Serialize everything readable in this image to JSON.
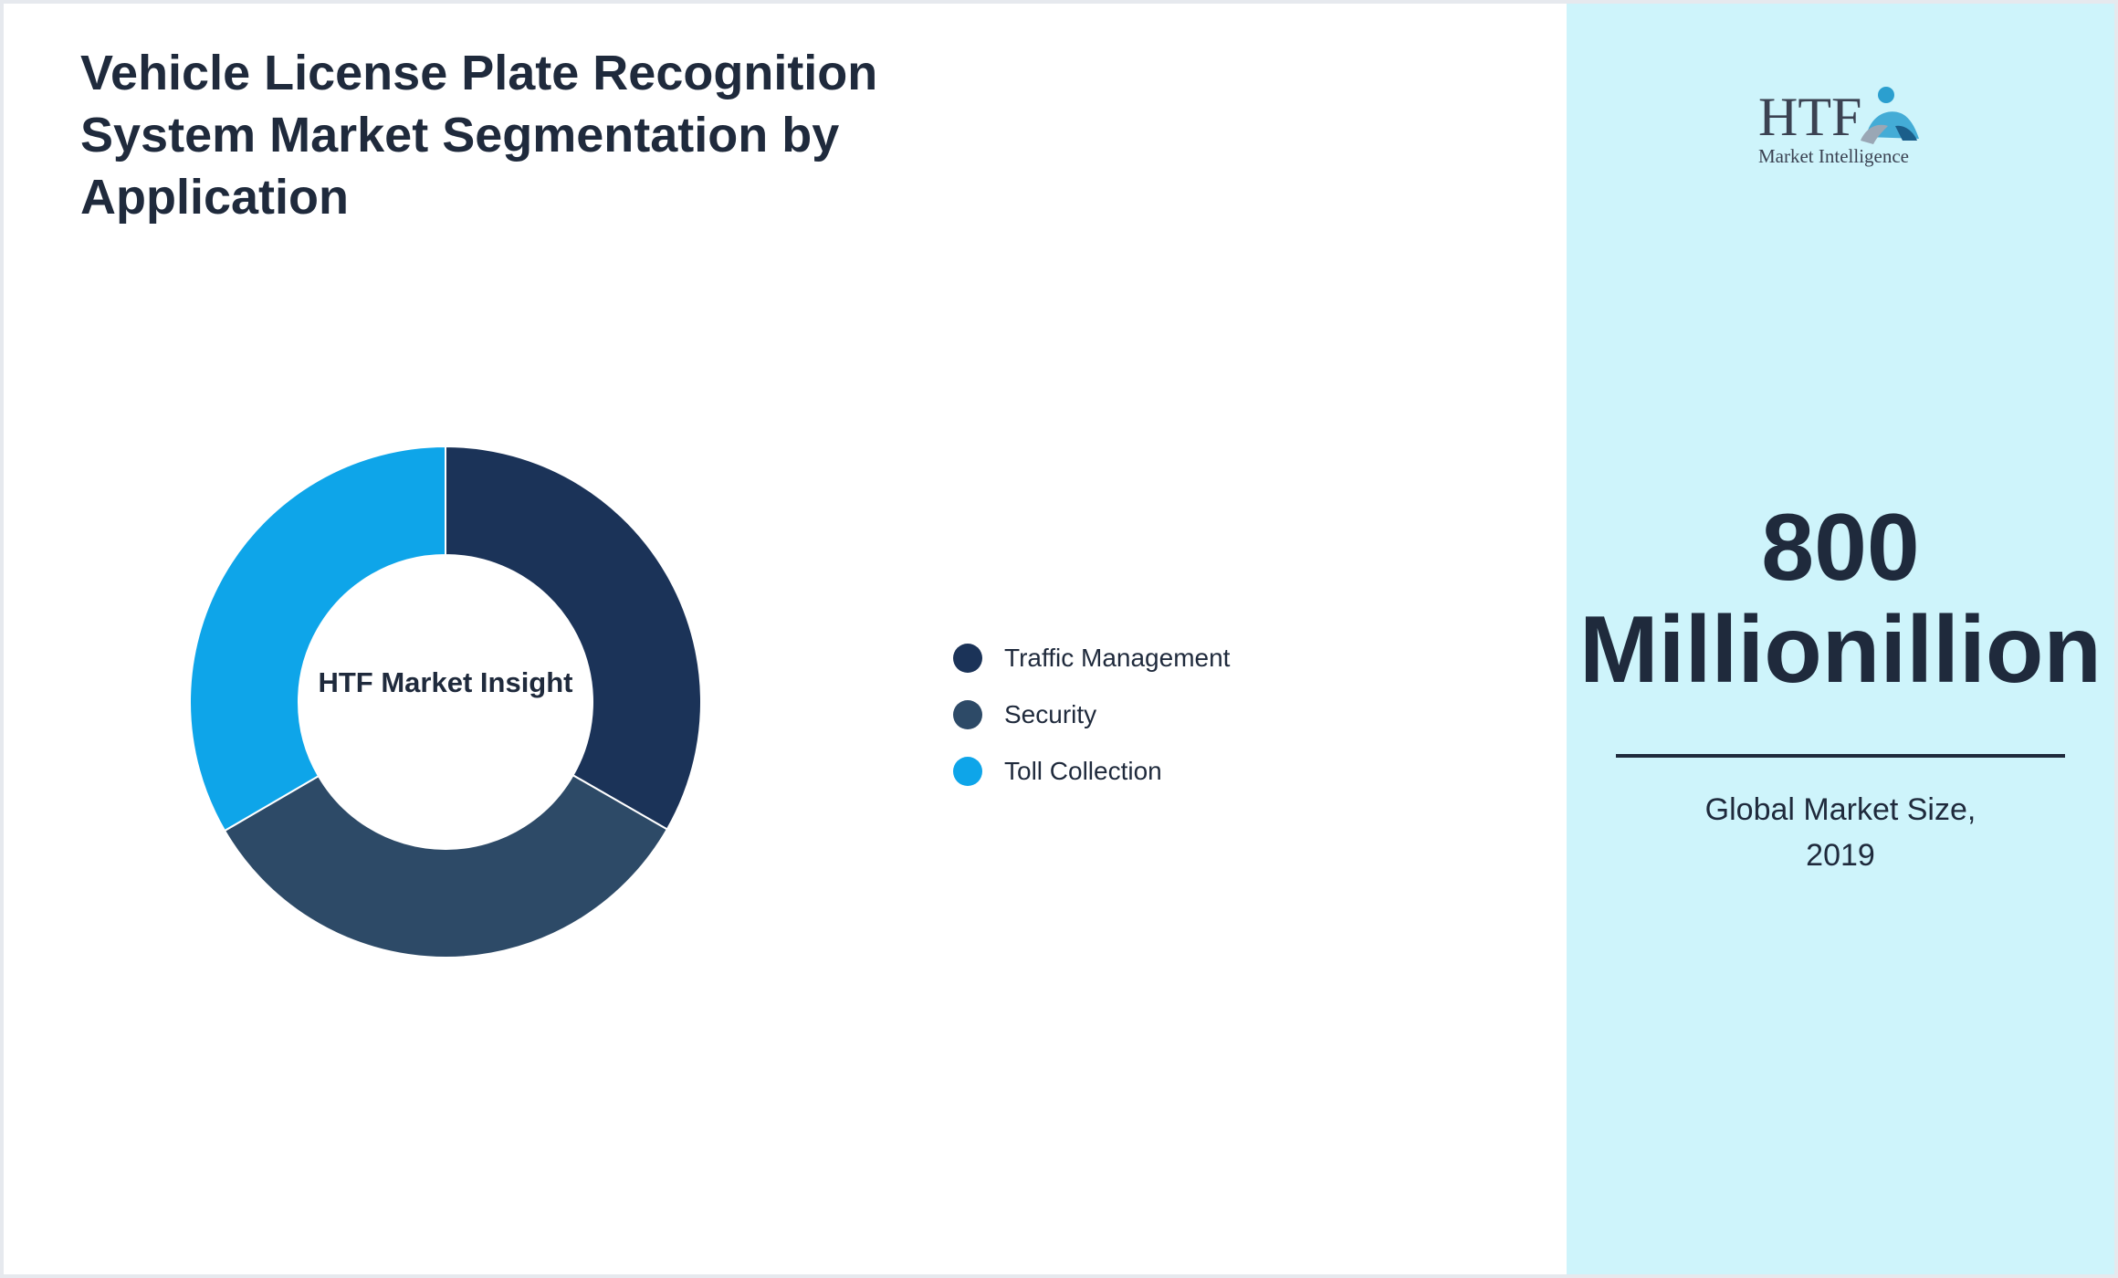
{
  "title": "Vehicle License Plate Recognition System Market Segmentation by Application",
  "chart_data": {
    "type": "pie",
    "donut": true,
    "center_label": "HTF Market Insight",
    "categories": [
      "Traffic Management",
      "Security",
      "Toll Collection"
    ],
    "values": [
      33.3,
      33.3,
      33.4
    ],
    "colors": [
      "#1b3358",
      "#2d4a67",
      "#0ea5e9"
    ],
    "legend_position": "right"
  },
  "side_panel": {
    "logo": {
      "text": "HTF",
      "subtitle": "Market Intelligence"
    },
    "value_line1": "800",
    "value_line2": "Millionillion",
    "caption_line1": "Global Market Size,",
    "caption_line2": "2019",
    "background": "#cef4fb"
  }
}
